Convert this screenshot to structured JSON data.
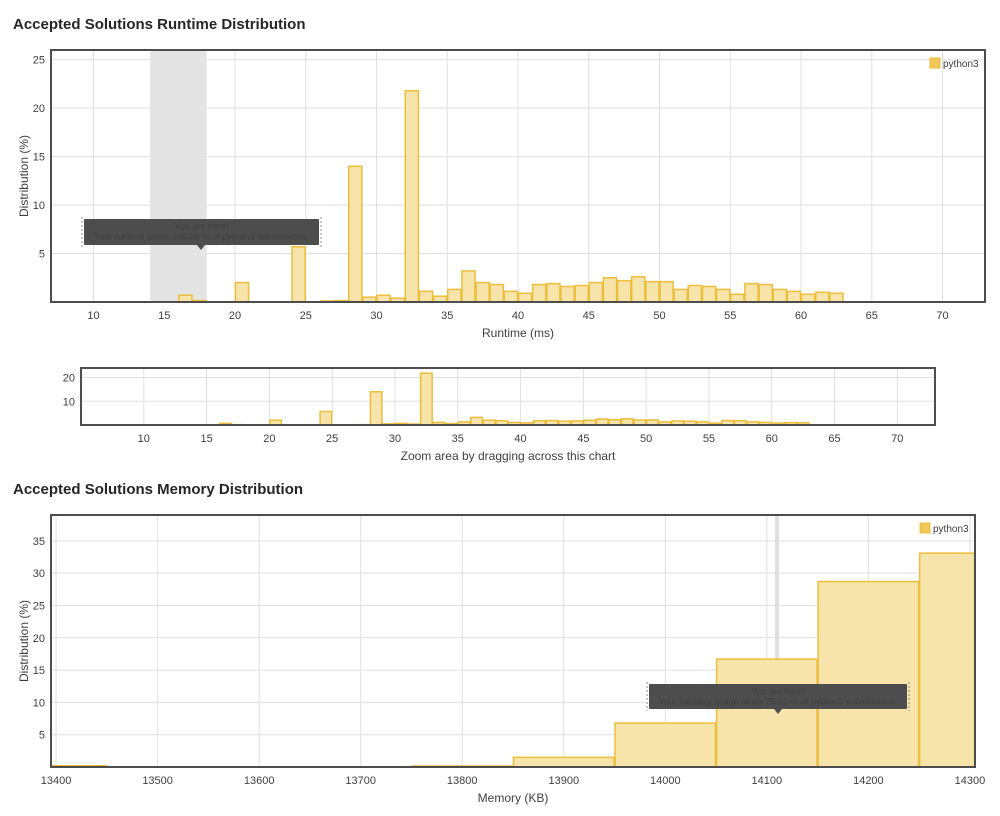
{
  "runtime_section": {
    "title": "Accepted Solutions Runtime Distribution"
  },
  "memory_section": {
    "title": "Accepted Solutions Memory Distribution"
  },
  "zoom_hint": "Zoom area by dragging across this chart",
  "colors": {
    "bar_fill": "#f7e4aa",
    "bar_stroke": "#edbd3b",
    "highlight": "#d8d8d8",
    "tooltip_bg": "#4d4d4d",
    "frame": "#4d4d4d",
    "grid": "#e0e0e0"
  },
  "chart_data": [
    {
      "type": "bar",
      "title": "Accepted Solutions Runtime Distribution",
      "xlabel": "Runtime (ms)",
      "ylabel": "Distribution (%)",
      "xlim": [
        7,
        73
      ],
      "ylim": [
        0,
        26
      ],
      "x_ticks": [
        10,
        15,
        20,
        25,
        30,
        35,
        40,
        45,
        50,
        55,
        60,
        65,
        70
      ],
      "y_ticks": [
        5,
        10,
        15,
        20,
        25
      ],
      "grid": true,
      "legend": {
        "position": "top-right",
        "entries": [
          "python3"
        ]
      },
      "bin_width": 1,
      "series": [
        {
          "name": "python3",
          "x": [
            16.5,
            17.5,
            20.5,
            24.5,
            26.5,
            27.5,
            28.5,
            29.5,
            30.5,
            31.5,
            32.5,
            33.5,
            34.5,
            35.5,
            36.5,
            37.5,
            38.5,
            39.5,
            40.5,
            41.5,
            42.5,
            43.5,
            44.5,
            45.5,
            46.5,
            47.5,
            48.5,
            49.5,
            50.5,
            51.5,
            52.5,
            53.5,
            54.5,
            55.5,
            56.5,
            57.5,
            58.5,
            59.5,
            60.5,
            61.5,
            62.5
          ],
          "values": [
            0.7,
            0.15,
            2.0,
            5.7,
            0.1,
            0.15,
            14.0,
            0.5,
            0.7,
            0.4,
            21.8,
            1.1,
            0.6,
            1.3,
            3.2,
            2.0,
            1.8,
            1.1,
            0.9,
            1.8,
            1.9,
            1.6,
            1.7,
            2.0,
            2.5,
            2.2,
            2.6,
            2.1,
            2.1,
            1.3,
            1.7,
            1.6,
            1.3,
            0.8,
            1.9,
            1.8,
            1.3,
            1.1,
            0.8,
            1.0,
            0.9
          ]
        }
      ],
      "highlight_range": [
        14,
        18
      ],
      "tooltip": {
        "line1": "You are here!",
        "line2": "Your runtime beats 100.00 % of python3 submissions."
      }
    },
    {
      "type": "bar",
      "title": "",
      "xlabel": "Zoom area by dragging across this chart",
      "ylabel": "",
      "xlim": [
        5,
        73
      ],
      "ylim": [
        0,
        24
      ],
      "x_ticks": [
        10,
        15,
        20,
        25,
        30,
        35,
        40,
        45,
        50,
        55,
        60,
        65,
        70
      ],
      "y_ticks": [
        10,
        20
      ],
      "grid": true,
      "series": [
        {
          "name": "python3",
          "x": [
            16.5,
            17.5,
            20.5,
            24.5,
            26.5,
            27.5,
            28.5,
            29.5,
            30.5,
            31.5,
            32.5,
            33.5,
            34.5,
            35.5,
            36.5,
            37.5,
            38.5,
            39.5,
            40.5,
            41.5,
            42.5,
            43.5,
            44.5,
            45.5,
            46.5,
            47.5,
            48.5,
            49.5,
            50.5,
            51.5,
            52.5,
            53.5,
            54.5,
            55.5,
            56.5,
            57.5,
            58.5,
            59.5,
            60.5,
            61.5,
            62.5
          ],
          "values": [
            0.7,
            0.15,
            2.0,
            5.7,
            0.1,
            0.15,
            14.0,
            0.5,
            0.7,
            0.4,
            21.8,
            1.1,
            0.6,
            1.3,
            3.2,
            2.0,
            1.8,
            1.1,
            0.9,
            1.8,
            1.9,
            1.6,
            1.7,
            2.0,
            2.5,
            2.2,
            2.6,
            2.1,
            2.1,
            1.3,
            1.7,
            1.6,
            1.3,
            0.8,
            1.9,
            1.8,
            1.3,
            1.1,
            0.8,
            1.0,
            0.9
          ]
        }
      ]
    },
    {
      "type": "bar",
      "title": "Accepted Solutions Memory Distribution",
      "xlabel": "Memory (KB)",
      "ylabel": "Distribution (%)",
      "xlim": [
        13395,
        14305
      ],
      "ylim": [
        0,
        39
      ],
      "x_ticks": [
        13400,
        13500,
        13600,
        13700,
        13800,
        13900,
        14000,
        14100,
        14200,
        14300
      ],
      "y_ticks": [
        5,
        10,
        15,
        20,
        25,
        30,
        35
      ],
      "grid": true,
      "legend": {
        "position": "top-right",
        "entries": [
          "python3"
        ]
      },
      "bin_width": 100,
      "series": [
        {
          "name": "python3",
          "x": [
            13400,
            13800,
            13900,
            14000,
            14100,
            14200,
            14300
          ],
          "values": [
            0.2,
            0.15,
            1.5,
            6.8,
            16.7,
            28.7,
            33.1
          ]
        }
      ],
      "highlight_value": 14110,
      "tooltip": {
        "line1": "You are here!",
        "line2": "Your memory usage beats 75.02 % of python3 submissions."
      }
    }
  ]
}
